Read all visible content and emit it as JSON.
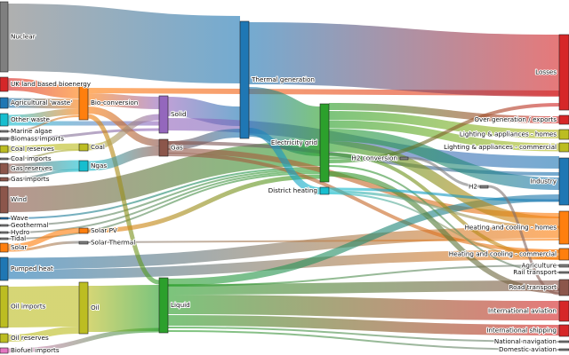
{
  "diagram": {
    "type": "sankey",
    "nodes": [
      {
        "id": "nuclear",
        "label": "Nuclear",
        "color": "#7f7f7f"
      },
      {
        "id": "uk_bio",
        "label": "UK land based bioenergy",
        "color": "#d62728"
      },
      {
        "id": "agri_waste",
        "label": "Agricultural 'waste'",
        "color": "#1f77b4"
      },
      {
        "id": "other_waste",
        "label": "Other waste",
        "color": "#17becf"
      },
      {
        "id": "marine_algae",
        "label": "Marine algae",
        "color": "#7f7f7f"
      },
      {
        "id": "biomass_imports",
        "label": "Biomass imports",
        "color": "#7f7f7f"
      },
      {
        "id": "coal_reserves",
        "label": "Coal reserves",
        "color": "#bcbd22"
      },
      {
        "id": "coal_imports",
        "label": "Coal imports",
        "color": "#7f7f7f"
      },
      {
        "id": "gas_reserves",
        "label": "Gas reserves",
        "color": "#8c564b"
      },
      {
        "id": "gas_imports",
        "label": "Gas imports",
        "color": "#8c564b"
      },
      {
        "id": "wind",
        "label": "Wind",
        "color": "#8c564b"
      },
      {
        "id": "wave",
        "label": "Wave",
        "color": "#1f77b4"
      },
      {
        "id": "geothermal",
        "label": "Geothermal",
        "color": "#7f7f7f"
      },
      {
        "id": "hydro",
        "label": "Hydro",
        "color": "#7f7f7f"
      },
      {
        "id": "tidal",
        "label": "Tidal",
        "color": "#7f7f7f"
      },
      {
        "id": "solar",
        "label": "Solar",
        "color": "#ff7f0e"
      },
      {
        "id": "pumped_heat",
        "label": "Pumped heat",
        "color": "#1f77b4"
      },
      {
        "id": "oil_imports",
        "label": "Oil imports",
        "color": "#bcbd22"
      },
      {
        "id": "oil_reserves",
        "label": "Oil reserves",
        "color": "#bcbd22"
      },
      {
        "id": "biofuel_imports",
        "label": "Biofuel imports",
        "color": "#e377c2"
      },
      {
        "id": "bio_conversion",
        "label": "Bio-conversion",
        "color": "#ff7f0e"
      },
      {
        "id": "coal",
        "label": "Coal",
        "color": "#bcbd22"
      },
      {
        "id": "ngas",
        "label": "Ngas",
        "color": "#17becf"
      },
      {
        "id": "solar_pv",
        "label": "Solar PV",
        "color": "#ff7f0e"
      },
      {
        "id": "solar_thermal",
        "label": "Solar Thermal",
        "color": "#7f7f7f"
      },
      {
        "id": "oil",
        "label": "Oil",
        "color": "#bcbd22"
      },
      {
        "id": "solid",
        "label": "Solid",
        "color": "#9467bd"
      },
      {
        "id": "gas",
        "label": "Gas",
        "color": "#8c564b"
      },
      {
        "id": "liquid",
        "label": "Liquid",
        "color": "#2ca02c"
      },
      {
        "id": "thermal_generation",
        "label": "Thermal generation",
        "color": "#1f77b4"
      },
      {
        "id": "electricity_grid",
        "label": "Electricity grid",
        "color": "#2ca02c"
      },
      {
        "id": "district_heating",
        "label": "District heating",
        "color": "#17becf"
      },
      {
        "id": "h2_conversion",
        "label": "H2 conversion",
        "color": "#7f7f7f"
      },
      {
        "id": "h2",
        "label": "H2",
        "color": "#7f7f7f"
      },
      {
        "id": "losses",
        "label": "Losses",
        "color": "#d62728"
      },
      {
        "id": "over_generation",
        "label": "Over generation / exports",
        "color": "#d62728"
      },
      {
        "id": "lighting_homes",
        "label": "Lighting & appliances - homes",
        "color": "#bcbd22"
      },
      {
        "id": "lighting_commercial",
        "label": "Lighting & appliances - commercial",
        "color": "#bcbd22"
      },
      {
        "id": "industry",
        "label": "Industry",
        "color": "#1f77b4"
      },
      {
        "id": "heating_homes",
        "label": "Heating and cooling - homes",
        "color": "#ff7f0e"
      },
      {
        "id": "heating_commercial",
        "label": "Heating and cooling - commercial",
        "color": "#ff7f0e"
      },
      {
        "id": "agriculture",
        "label": "Agriculture",
        "color": "#7f7f7f"
      },
      {
        "id": "rail_transport",
        "label": "Rail transport",
        "color": "#7f7f7f"
      },
      {
        "id": "road_transport",
        "label": "Road transport",
        "color": "#8c564b"
      },
      {
        "id": "international_aviation",
        "label": "International aviation",
        "color": "#d62728"
      },
      {
        "id": "international_shipping",
        "label": "International shipping",
        "color": "#d62728"
      },
      {
        "id": "national_navigation",
        "label": "National navigation",
        "color": "#7f7f7f"
      },
      {
        "id": "domestic_aviation",
        "label": "Domestic aviation",
        "color": "#7f7f7f"
      }
    ],
    "links": [
      {
        "from": "nuclear",
        "to": "thermal_generation"
      },
      {
        "from": "uk_bio",
        "to": "bio_conversion"
      },
      {
        "from": "agri_waste",
        "to": "bio_conversion"
      },
      {
        "from": "other_waste",
        "to": "bio_conversion"
      },
      {
        "from": "other_waste",
        "to": "solid"
      },
      {
        "from": "marine_algae",
        "to": "bio_conversion"
      },
      {
        "from": "biomass_imports",
        "to": "solid"
      },
      {
        "from": "coal_reserves",
        "to": "coal"
      },
      {
        "from": "coal_imports",
        "to": "coal"
      },
      {
        "from": "gas_reserves",
        "to": "ngas"
      },
      {
        "from": "gas_imports",
        "to": "ngas"
      },
      {
        "from": "wind",
        "to": "electricity_grid"
      },
      {
        "from": "wave",
        "to": "electricity_grid"
      },
      {
        "from": "geothermal",
        "to": "electricity_grid"
      },
      {
        "from": "hydro",
        "to": "electricity_grid"
      },
      {
        "from": "tidal",
        "to": "electricity_grid"
      },
      {
        "from": "solar",
        "to": "solar_pv"
      },
      {
        "from": "solar",
        "to": "solar_thermal"
      },
      {
        "from": "pumped_heat",
        "to": "heating_homes"
      },
      {
        "from": "pumped_heat",
        "to": "heating_commercial"
      },
      {
        "from": "oil_imports",
        "to": "oil"
      },
      {
        "from": "oil_reserves",
        "to": "oil"
      },
      {
        "from": "biofuel_imports",
        "to": "liquid"
      },
      {
        "from": "bio_conversion",
        "to": "solid"
      },
      {
        "from": "bio_conversion",
        "to": "gas"
      },
      {
        "from": "bio_conversion",
        "to": "liquid"
      },
      {
        "from": "bio_conversion",
        "to": "losses"
      },
      {
        "from": "coal",
        "to": "solid"
      },
      {
        "from": "ngas",
        "to": "gas"
      },
      {
        "from": "solar_pv",
        "to": "electricity_grid"
      },
      {
        "from": "solar_thermal",
        "to": "heating_homes"
      },
      {
        "from": "oil",
        "to": "liquid"
      },
      {
        "from": "solid",
        "to": "thermal_generation"
      },
      {
        "from": "solid",
        "to": "industry"
      },
      {
        "from": "gas",
        "to": "thermal_generation"
      },
      {
        "from": "gas",
        "to": "heating_homes"
      },
      {
        "from": "gas",
        "to": "heating_commercial"
      },
      {
        "from": "gas",
        "to": "industry"
      },
      {
        "from": "liquid",
        "to": "industry"
      },
      {
        "from": "liquid",
        "to": "road_transport"
      },
      {
        "from": "liquid",
        "to": "international_aviation"
      },
      {
        "from": "liquid",
        "to": "international_shipping"
      },
      {
        "from": "liquid",
        "to": "national_navigation"
      },
      {
        "from": "liquid",
        "to": "domestic_aviation"
      },
      {
        "from": "liquid",
        "to": "agriculture"
      },
      {
        "from": "thermal_generation",
        "to": "losses"
      },
      {
        "from": "thermal_generation",
        "to": "electricity_grid"
      },
      {
        "from": "thermal_generation",
        "to": "district_heating"
      },
      {
        "from": "electricity_grid",
        "to": "over_generation"
      },
      {
        "from": "electricity_grid",
        "to": "lighting_homes"
      },
      {
        "from": "electricity_grid",
        "to": "lighting_commercial"
      },
      {
        "from": "electricity_grid",
        "to": "industry"
      },
      {
        "from": "electricity_grid",
        "to": "heating_homes"
      },
      {
        "from": "electricity_grid",
        "to": "heating_commercial"
      },
      {
        "from": "electricity_grid",
        "to": "h2_conversion"
      },
      {
        "from": "electricity_grid",
        "to": "losses"
      },
      {
        "from": "electricity_grid",
        "to": "rail_transport"
      },
      {
        "from": "electricity_grid",
        "to": "road_transport"
      },
      {
        "from": "district_heating",
        "to": "industry"
      },
      {
        "from": "district_heating",
        "to": "heating_homes"
      },
      {
        "from": "district_heating",
        "to": "heating_commercial"
      },
      {
        "from": "h2_conversion",
        "to": "h2"
      },
      {
        "from": "h2",
        "to": "road_transport"
      }
    ]
  }
}
